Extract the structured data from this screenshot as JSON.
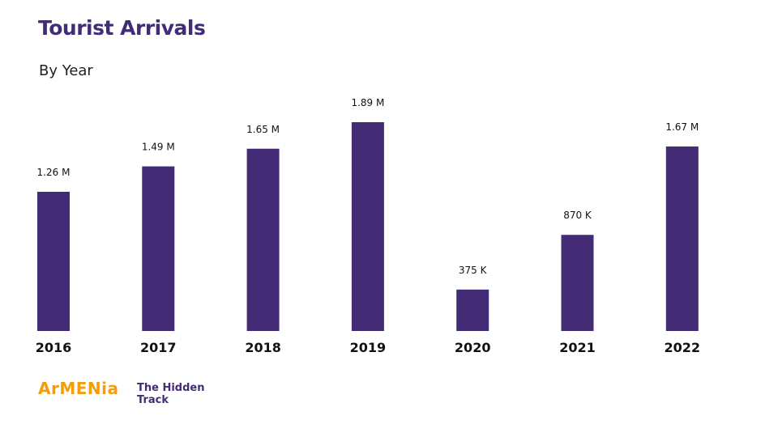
{
  "chart_data": {
    "type": "bar",
    "title": "Tourist Arrivals",
    "subtitle": "By Year",
    "categories": [
      "2016",
      "2017",
      "2018",
      "2019",
      "2020",
      "2021",
      "2022"
    ],
    "values": [
      1260000,
      1490000,
      1650000,
      1890000,
      375000,
      870000,
      1670000
    ],
    "data_labels": [
      "1.26 M",
      "1.49 M",
      "1.65 M",
      "1.89 M",
      "375 K",
      "870 K",
      "1.67 M"
    ],
    "xlabel": "",
    "ylabel": "",
    "ylim": [
      0,
      1890000
    ],
    "grid": false,
    "bar_color": "#432c75"
  },
  "branding": {
    "logo_main": "ArMENia",
    "logo_tagline_line1": "The Hidden",
    "logo_tagline_line2": "Track",
    "logo_main_color": "#f59c0b"
  }
}
